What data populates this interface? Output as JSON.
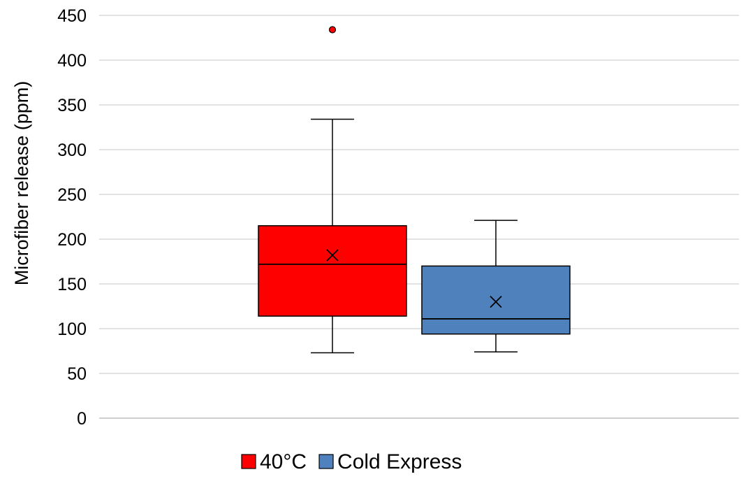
{
  "chart_data": {
    "type": "boxplot",
    "ylabel": "Microfiber release (ppm)",
    "xlabel": "",
    "ylim": [
      0,
      450
    ],
    "yticks": [
      0,
      50,
      100,
      150,
      200,
      250,
      300,
      350,
      400,
      450
    ],
    "grid": true,
    "legend": "bottom",
    "series": [
      {
        "name": "40°C",
        "color": "#ff0000",
        "whisker_low": 73,
        "q1": 114,
        "median": 172,
        "q3": 215,
        "whisker_high": 334,
        "mean": 182,
        "outliers": [
          434
        ]
      },
      {
        "name": "Cold Express",
        "color": "#4f81bd",
        "whisker_low": 74,
        "q1": 94,
        "median": 111,
        "q3": 170,
        "whisker_high": 221,
        "mean": 130,
        "outliers": []
      }
    ]
  }
}
